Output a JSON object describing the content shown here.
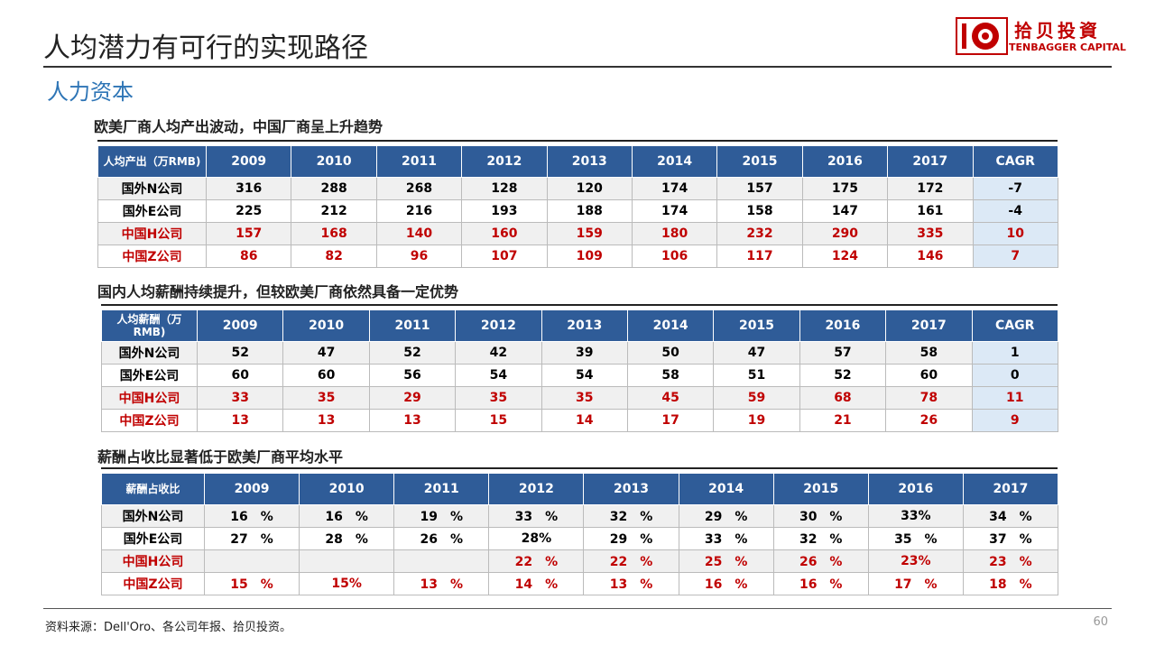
{
  "header": {
    "title": "人均潜力有可行的实现路径",
    "logo_name": "拾贝投資",
    "logo_en": "TENBAGGER CAPITAL"
  },
  "subtitle": "人力资本",
  "sections": [
    {
      "heading": "欧美厂商人均产出波动，中国厂商呈上升趋势",
      "table": {
        "header": [
          "人均产出（万RMB)",
          "2009",
          "2010",
          "2011",
          "2012",
          "2013",
          "2014",
          "2015",
          "2016",
          "2017",
          "CAGR"
        ],
        "rows": [
          [
            "国外N公司",
            "316",
            "288",
            "268",
            "128",
            "120",
            "174",
            "157",
            "175",
            "172",
            "-7"
          ],
          [
            "国外E公司",
            "225",
            "212",
            "216",
            "193",
            "188",
            "174",
            "158",
            "147",
            "161",
            "-4"
          ],
          [
            "中国H公司",
            "157",
            "168",
            "140",
            "160",
            "159",
            "180",
            "232",
            "290",
            "335",
            "10"
          ],
          [
            "中国Z公司",
            "86",
            "82",
            "96",
            "107",
            "109",
            "106",
            "117",
            "124",
            "146",
            "7"
          ]
        ]
      }
    },
    {
      "heading": "国内人均薪酬持续提升，但较欧美厂商依然具备一定优势",
      "table": {
        "header": [
          "人均薪酬（万RMB)",
          "2009",
          "2010",
          "2011",
          "2012",
          "2013",
          "2014",
          "2015",
          "2016",
          "2017",
          "CAGR"
        ],
        "rows": [
          [
            "国外N公司",
            "52",
            "47",
            "52",
            "42",
            "39",
            "50",
            "47",
            "57",
            "58",
            "1"
          ],
          [
            "国外E公司",
            "60",
            "60",
            "56",
            "54",
            "54",
            "58",
            "51",
            "52",
            "60",
            "0"
          ],
          [
            "中国H公司",
            "33",
            "35",
            "29",
            "35",
            "35",
            "45",
            "59",
            "68",
            "78",
            "11"
          ],
          [
            "中国Z公司",
            "13",
            "13",
            "13",
            "15",
            "14",
            "17",
            "19",
            "21",
            "26",
            "9"
          ]
        ]
      }
    },
    {
      "heading": "薪酬占收比显著低于欧美厂商平均水平",
      "table": {
        "header": [
          "薪酬占收比",
          "2009",
          "2010",
          "2011",
          "2012",
          "2013",
          "2014",
          "2015",
          "2016",
          "2017"
        ],
        "rows": [
          [
            "国外N公司",
            "16　%",
            "16　%",
            "19　%",
            "33　%",
            "32　%",
            "29　%",
            "30　%",
            "33%",
            "34　%"
          ],
          [
            "国外E公司",
            "27　%",
            "28　%",
            "26　%",
            "28%",
            "29　%",
            "33　%",
            "32　%",
            "35　%",
            "37　%"
          ],
          [
            "中国H公司",
            null,
            null,
            null,
            "22　%",
            "22　%",
            "25　%",
            "26　%",
            "23%",
            "23　%"
          ],
          [
            "中国Z公司",
            "15　%",
            "15%",
            "13　%",
            "14　%",
            "13　%",
            "16　%",
            "16　%",
            "17　%",
            "18　%"
          ]
        ]
      }
    }
  ],
  "footer": {
    "source": "资料来源：Dell'Oro、各公司年报、拾贝投资。",
    "page": "60"
  }
}
